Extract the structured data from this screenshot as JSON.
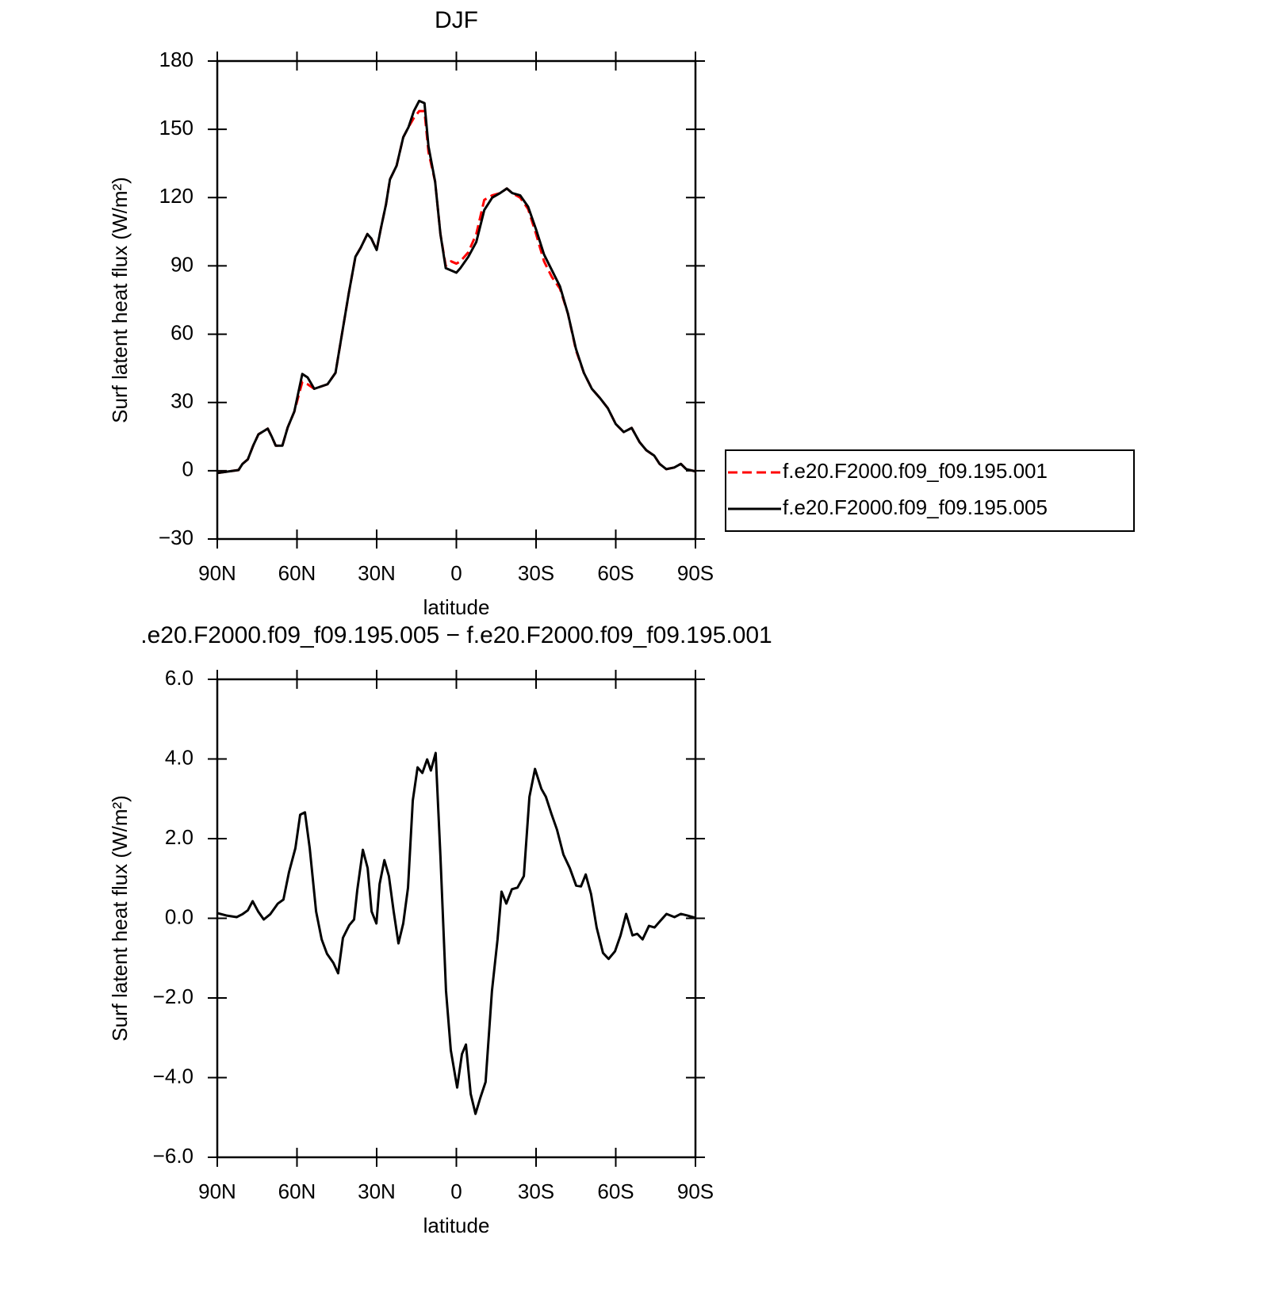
{
  "chart_data": [
    {
      "type": "line",
      "title": "DJF",
      "x_label": "latitude",
      "y_label": "Surf latent heat flux (W/m²)",
      "x": [
        90,
        82,
        80.5,
        78.5,
        76.5,
        74.5,
        71,
        69.5,
        68,
        65.5,
        63.5,
        61,
        58,
        56,
        53.5,
        51,
        48.5,
        45.5,
        43.5,
        40.5,
        38,
        36,
        33.5,
        32,
        30,
        28.5,
        26.5,
        25,
        22.5,
        20,
        18,
        16,
        14,
        12,
        10.5,
        8,
        6,
        4,
        2,
        0,
        -1.5,
        -4.5,
        -7.5,
        -10.5,
        -13.5,
        -16.5,
        -19,
        -21,
        -24,
        -27,
        -30,
        -33,
        -36,
        -39,
        -42,
        -45,
        -48,
        -51,
        -54,
        -57,
        -60,
        -63,
        -66,
        -69,
        -71.5,
        -74.5,
        -76.5,
        -79,
        -82,
        -84.5,
        -86.5,
        -90
      ],
      "xlim": [
        90,
        -90
      ],
      "xticks": [
        {
          "value": 90,
          "label": "90N"
        },
        {
          "value": 60,
          "label": "60N"
        },
        {
          "value": 30,
          "label": "30N"
        },
        0,
        {
          "value": -30,
          "label": "30S"
        },
        {
          "value": -60,
          "label": "60S"
        },
        {
          "value": -90,
          "label": "90S"
        }
      ],
      "ylim": [
        -30,
        180
      ],
      "yticks": [
        {
          "value": -30,
          "label": "−30"
        },
        0,
        30,
        60,
        90,
        120,
        150,
        180
      ],
      "legend": "right",
      "series": [
        {
          "name": "f.e20.F2000.f09_f09.195.001",
          "color": "#ff0000",
          "dash": "dashed",
          "values": [
            -1,
            0.3,
            3,
            5,
            11,
            16,
            18.5,
            15,
            11,
            11,
            19,
            26,
            39,
            38,
            36,
            37,
            38,
            43,
            57,
            78,
            94,
            98,
            104,
            102,
            97,
            106,
            117,
            128,
            134,
            146.5,
            151,
            155,
            158,
            158,
            140,
            127,
            104,
            90,
            92,
            91,
            92,
            96,
            104,
            119,
            121,
            122,
            124,
            122,
            120,
            115,
            104,
            92,
            85,
            80,
            69,
            53,
            43,
            36,
            32,
            27.5,
            20.5,
            17,
            18.8,
            12.5,
            9,
            6.6,
            3,
            0.7,
            1.4,
            3,
            0.7,
            -0.3
          ]
        },
        {
          "name": "f.e20.F2000.f09_f09.195.005",
          "color": "#000000",
          "values": [
            -1,
            0.3,
            3,
            5,
            11,
            16,
            18.5,
            15,
            11,
            11,
            19,
            26,
            42.5,
            41,
            36,
            37,
            38,
            43,
            57,
            78,
            94,
            98,
            104,
            102,
            97,
            106,
            117,
            128,
            134,
            146.5,
            151,
            158,
            162.5,
            161.5,
            142.5,
            127,
            104,
            89,
            88,
            87,
            89,
            94,
            100.5,
            114.5,
            120,
            122,
            124,
            122,
            121,
            116,
            106,
            95,
            88,
            81,
            69,
            53.6,
            43,
            36,
            32,
            27.5,
            20.5,
            17,
            18.8,
            12.5,
            9,
            6.6,
            3,
            0.7,
            1.4,
            3,
            0.7,
            -0.3
          ]
        }
      ]
    },
    {
      "type": "line",
      "title": ".e20.F2000.f09_f09.195.005 − f.e20.F2000.f09_f09.195.001",
      "x_label": "latitude",
      "y_label": "Surf latent heat flux (W/m²)",
      "x": [
        90,
        86.6,
        82.7,
        80.6,
        78.5,
        76.7,
        74.6,
        72.5,
        70.1,
        67.2,
        65.1,
        63,
        60.6,
        58.8,
        57,
        55.2,
        52.8,
        50.7,
        48.7,
        46.3,
        44.5,
        42.7,
        40.3,
        38.5,
        37.3,
        35.2,
        33.4,
        31.9,
        30.1,
        28.9,
        27.1,
        25.4,
        23.6,
        21.8,
        20,
        18.2,
        16.4,
        14.6,
        12.8,
        11,
        9.6,
        7.8,
        6,
        3.9,
        2.1,
        -0.3,
        -2.1,
        -3.6,
        -5.4,
        -7.2,
        -9,
        -11,
        -13.4,
        -15.5,
        -17,
        -18.8,
        -20.9,
        -23,
        -25.4,
        -27.5,
        -29.6,
        -32,
        -33.7,
        -35.8,
        -37.9,
        -40.3,
        -42.7,
        -45.1,
        -46.9,
        -48.7,
        -50.7,
        -52.8,
        -55.2,
        -57.3,
        -59.7,
        -61.8,
        -63.9,
        -66.3,
        -68.1,
        -70.1,
        -72.5,
        -74.6,
        -76.7,
        -79.1,
        -82.1,
        -84.5,
        -86.9,
        -90
      ],
      "xlim": [
        90,
        -90
      ],
      "xticks": [
        {
          "value": 90,
          "label": "90N"
        },
        {
          "value": 60,
          "label": "60N"
        },
        {
          "value": 30,
          "label": "30N"
        },
        0,
        {
          "value": -30,
          "label": "30S"
        },
        {
          "value": -60,
          "label": "60S"
        },
        {
          "value": -90,
          "label": "90S"
        }
      ],
      "ylim": [
        -6,
        6
      ],
      "yticks": [
        {
          "value": -6,
          "label": "−6.0"
        },
        {
          "value": -4,
          "label": "−4.0"
        },
        {
          "value": -2,
          "label": "−2.0"
        },
        {
          "value": 0,
          "label": "0.0"
        },
        {
          "value": 2,
          "label": "2.0"
        },
        {
          "value": 4,
          "label": "4.0"
        },
        {
          "value": 6,
          "label": "6.0"
        }
      ],
      "series": [
        {
          "color": "#000000",
          "values": [
            0.13,
            0.07,
            0.03,
            0.1,
            0.2,
            0.43,
            0.17,
            -0.03,
            0.1,
            0.37,
            0.47,
            1.16,
            1.76,
            2.6,
            2.66,
            1.76,
            0.17,
            -0.53,
            -0.89,
            -1.12,
            -1.38,
            -0.49,
            -0.17,
            -0.03,
            0.71,
            1.72,
            1.26,
            0.17,
            -0.13,
            0.86,
            1.46,
            1.06,
            0.17,
            -0.63,
            -0.13,
            0.77,
            2.96,
            3.79,
            3.65,
            3.99,
            3.71,
            4.15,
            1.56,
            -1.82,
            -3.31,
            -4.25,
            -3.41,
            -3.17,
            -4.41,
            -4.91,
            -4.51,
            -4.11,
            -1.82,
            -0.53,
            0.67,
            0.37,
            0.73,
            0.77,
            1.06,
            3.05,
            3.75,
            3.25,
            3.05,
            2.62,
            2.22,
            1.6,
            1.26,
            0.82,
            0.8,
            1.1,
            0.61,
            -0.23,
            -0.87,
            -1.02,
            -0.83,
            -0.43,
            0.11,
            -0.43,
            -0.39,
            -0.53,
            -0.19,
            -0.23,
            -0.07,
            0.11,
            0.03,
            0.11,
            0.07,
            0.01
          ]
        }
      ]
    }
  ]
}
